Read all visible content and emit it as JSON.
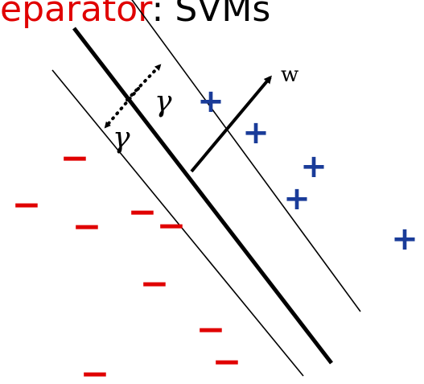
{
  "title": {
    "part1": "eparator",
    "part2": ": SVMs"
  },
  "labels": {
    "weight_vector": "w",
    "margin_upper": "γ",
    "margin_lower": "γ"
  },
  "marks": {
    "positive_symbol": "+",
    "negative_symbol": "−"
  },
  "colors": {
    "title_accent": "#e00000",
    "positive": "#1a3c99",
    "negative": "#e00000",
    "lines": "#000000"
  }
}
